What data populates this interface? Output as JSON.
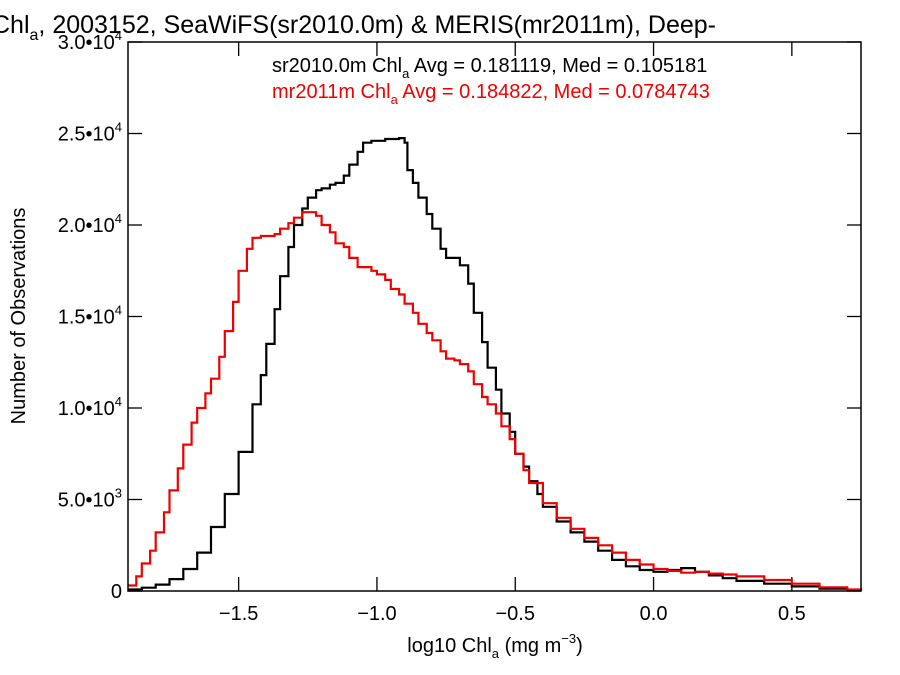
{
  "colors": {
    "background": "#ffffff",
    "axes": "#000000",
    "sr2010": "#000000",
    "mr2011": "#ee0000"
  },
  "chart_data": {
    "type": "line",
    "title": {
      "pre": "Chl",
      "sub": "a",
      "post": ", 2003152, SeaWiFS(sr2010.0m) & MERIS(mr2011m), Deep-"
    },
    "xlabel": {
      "pre": "log10 Chl",
      "sub": "a",
      "mid": " (mg m",
      "sup": "−3",
      "post": ")"
    },
    "ylabel": "Number of Observations",
    "xlim": [
      -1.9,
      0.75
    ],
    "ylim": [
      0,
      30000
    ],
    "xticks": [
      {
        "value": -1.5,
        "label": "−1.5"
      },
      {
        "value": -1.0,
        "label": "−1.0"
      },
      {
        "value": -0.5,
        "label": "−0.5"
      },
      {
        "value": 0.0,
        "label": "0.0"
      },
      {
        "value": 0.5,
        "label": "0.5"
      }
    ],
    "yticks": [
      {
        "value": 0,
        "mant": "0",
        "exp": ""
      },
      {
        "value": 5000,
        "mant": "5.0•10",
        "exp": "3"
      },
      {
        "value": 10000,
        "mant": "1.0•10",
        "exp": "4"
      },
      {
        "value": 15000,
        "mant": "1.5•10",
        "exp": "4"
      },
      {
        "value": 20000,
        "mant": "2.0•10",
        "exp": "4"
      },
      {
        "value": 25000,
        "mant": "2.5•10",
        "exp": "4"
      },
      {
        "value": 30000,
        "mant": "3.0•10",
        "exp": "4"
      }
    ],
    "grid": false,
    "legend_placement": "top-right",
    "series": [
      {
        "name": "sr2010.0m",
        "color": "#000000",
        "stats": {
          "pre": "sr2010.0m Chl",
          "sub": "a",
          "post": " Avg = 0.181119, Med = 0.105181"
        },
        "x": [
          -1.9,
          -1.85,
          -1.8,
          -1.75,
          -1.7,
          -1.65,
          -1.6,
          -1.55,
          -1.5,
          -1.45,
          -1.42,
          -1.4,
          -1.37,
          -1.35,
          -1.32,
          -1.3,
          -1.27,
          -1.25,
          -1.22,
          -1.2,
          -1.17,
          -1.15,
          -1.12,
          -1.1,
          -1.07,
          -1.05,
          -1.02,
          -1.0,
          -0.97,
          -0.95,
          -0.92,
          -0.9,
          -0.89,
          -0.87,
          -0.85,
          -0.82,
          -0.8,
          -0.77,
          -0.75,
          -0.72,
          -0.7,
          -0.67,
          -0.65,
          -0.62,
          -0.6,
          -0.57,
          -0.55,
          -0.52,
          -0.5,
          -0.47,
          -0.45,
          -0.42,
          -0.4,
          -0.35,
          -0.3,
          -0.25,
          -0.2,
          -0.15,
          -0.1,
          -0.05,
          0.0,
          0.05,
          0.1,
          0.15,
          0.2,
          0.25,
          0.3,
          0.4,
          0.5,
          0.6,
          0.7,
          0.75
        ],
        "y": [
          80,
          180,
          350,
          650,
          1200,
          2100,
          3500,
          5300,
          7600,
          10200,
          11800,
          13500,
          15400,
          17200,
          18800,
          20000,
          20900,
          21500,
          21900,
          22000,
          22200,
          22300,
          22700,
          23300,
          24000,
          24500,
          24600,
          24600,
          24700,
          24700,
          24750,
          24500,
          23000,
          22300,
          21500,
          20600,
          19800,
          18700,
          18200,
          18200,
          17800,
          16800,
          15200,
          13600,
          12200,
          11000,
          9700,
          8700,
          7500,
          6800,
          6000,
          5300,
          4600,
          3800,
          3200,
          2700,
          2200,
          1700,
          1350,
          1150,
          1050,
          1150,
          1250,
          1050,
          850,
          700,
          550,
          400,
          250,
          130,
          60,
          20
        ]
      },
      {
        "name": "mr2011m",
        "color": "#ee0000",
        "stats": {
          "pre": "mr2011m Chl",
          "sub": "a",
          "post": " Avg = 0.184822, Med = 0.0784743"
        },
        "x": [
          -1.9,
          -1.87,
          -1.85,
          -1.82,
          -1.8,
          -1.77,
          -1.75,
          -1.72,
          -1.7,
          -1.67,
          -1.65,
          -1.62,
          -1.6,
          -1.57,
          -1.55,
          -1.52,
          -1.5,
          -1.47,
          -1.45,
          -1.42,
          -1.4,
          -1.37,
          -1.35,
          -1.32,
          -1.3,
          -1.27,
          -1.25,
          -1.22,
          -1.2,
          -1.17,
          -1.15,
          -1.12,
          -1.1,
          -1.07,
          -1.05,
          -1.02,
          -1.0,
          -0.97,
          -0.95,
          -0.92,
          -0.9,
          -0.87,
          -0.85,
          -0.82,
          -0.8,
          -0.77,
          -0.75,
          -0.72,
          -0.7,
          -0.67,
          -0.65,
          -0.62,
          -0.6,
          -0.57,
          -0.55,
          -0.52,
          -0.5,
          -0.47,
          -0.45,
          -0.4,
          -0.35,
          -0.3,
          -0.25,
          -0.2,
          -0.15,
          -0.1,
          -0.05,
          0.0,
          0.05,
          0.1,
          0.15,
          0.2,
          0.25,
          0.3,
          0.4,
          0.5,
          0.6,
          0.7,
          0.75
        ],
        "y": [
          300,
          800,
          1500,
          2200,
          3200,
          4300,
          5500,
          6700,
          8000,
          9200,
          10000,
          10800,
          11600,
          12800,
          14200,
          15800,
          17500,
          18700,
          19300,
          19400,
          19400,
          19500,
          19800,
          20100,
          20400,
          20700,
          20700,
          20500,
          20000,
          19600,
          19000,
          18800,
          18200,
          17700,
          17700,
          17500,
          17300,
          17000,
          16500,
          16200,
          15700,
          15200,
          14600,
          14100,
          13700,
          13100,
          12700,
          12600,
          12400,
          12000,
          11300,
          10600,
          10200,
          9700,
          9000,
          8300,
          7500,
          6600,
          5900,
          4800,
          4000,
          3400,
          2900,
          2500,
          2100,
          1700,
          1450,
          1200,
          1100,
          1000,
          1050,
          950,
          900,
          800,
          600,
          400,
          200,
          80,
          30
        ]
      }
    ]
  }
}
